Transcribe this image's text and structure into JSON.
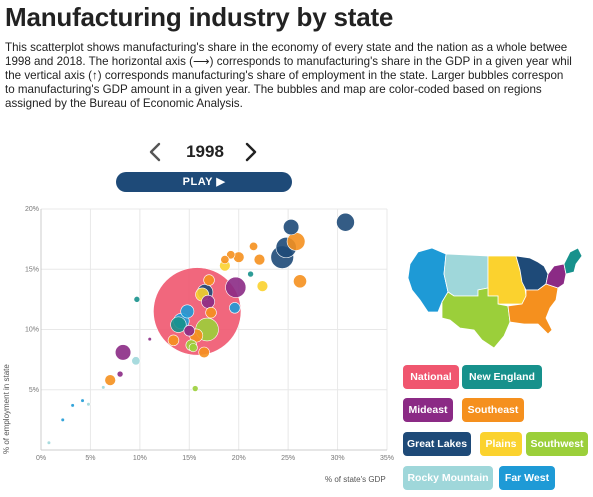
{
  "header": {
    "title": "Manufacturing industry by state",
    "description": [
      "This scatterplot shows manufacturing's share in the economy of every state and the nation as a whole betwee",
      "1998 and 2018. The horizontal axis (⟶) corresponds to manufacturing's share in the GDP in a given year whil",
      "the vertical axis (↑) corresponds manufacturing's share of employment in the state. Larger bubbles correspon",
      "to manufacturing's GDP amount in a given year. The bubbles and map are color-coded based on regions",
      "assigned by the Bureau of Economic Analysis."
    ]
  },
  "controls": {
    "year": "1998",
    "prev_icon": "chevron-left-icon",
    "next_icon": "chevron-right-icon",
    "play_label": "PLAY ▶"
  },
  "colors": {
    "National": "#f0566f",
    "New England": "#17918c",
    "Mideast": "#8b2a85",
    "Southeast": "#f5901e",
    "Great Lakes": "#1e4a78",
    "Plains": "#fbd22e",
    "Southwest": "#9bcf3a",
    "Rocky Mountain": "#9fd7da",
    "Far West": "#1e9ad6"
  },
  "legend": {
    "items": [
      "National",
      "New England",
      "Mideast",
      "Southeast",
      "Great Lakes",
      "Plains",
      "Southwest",
      "Rocky Mountain",
      "Far West"
    ]
  },
  "chart_data": {
    "type": "scatter",
    "title": "",
    "xlabel": "% of state's GDP",
    "ylabel": "% of employment in state",
    "xlim": [
      0,
      35
    ],
    "ylim": [
      0,
      20
    ],
    "xticks": [
      "0%",
      "5%",
      "10%",
      "15%",
      "20%",
      "25%",
      "30%",
      "35%"
    ],
    "yticks": [
      "5%",
      "10%",
      "15%",
      "20%"
    ],
    "grid": true,
    "points": [
      {
        "region": "National",
        "x": 15.8,
        "y": 11.5,
        "size": 36
      },
      {
        "region": "Great Lakes",
        "x": 30.8,
        "y": 18.9,
        "size": 7
      },
      {
        "region": "Great Lakes",
        "x": 25.3,
        "y": 18.5,
        "size": 6
      },
      {
        "region": "Great Lakes",
        "x": 24.8,
        "y": 16.8,
        "size": 8
      },
      {
        "region": "Great Lakes",
        "x": 24.4,
        "y": 16.0,
        "size": 9
      },
      {
        "region": "Southeast",
        "x": 25.8,
        "y": 17.3,
        "size": 7
      },
      {
        "region": "Southeast",
        "x": 26.2,
        "y": 14.0,
        "size": 5
      },
      {
        "region": "Southeast",
        "x": 22.1,
        "y": 15.8,
        "size": 4
      },
      {
        "region": "Southeast",
        "x": 19.2,
        "y": 16.2,
        "size": 3
      },
      {
        "region": "Southeast",
        "x": 18.6,
        "y": 15.8,
        "size": 3
      },
      {
        "region": "Southeast",
        "x": 21.5,
        "y": 16.9,
        "size": 3
      },
      {
        "region": "Southeast",
        "x": 20.0,
        "y": 16.0,
        "size": 4
      },
      {
        "region": "Plains",
        "x": 22.4,
        "y": 13.6,
        "size": 4
      },
      {
        "region": "Plains",
        "x": 18.6,
        "y": 15.3,
        "size": 4
      },
      {
        "region": "New England",
        "x": 21.2,
        "y": 14.6,
        "size": 2
      },
      {
        "region": "Mideast",
        "x": 19.7,
        "y": 13.5,
        "size": 8
      },
      {
        "region": "Far West",
        "x": 19.6,
        "y": 11.8,
        "size": 4
      },
      {
        "region": "Southeast",
        "x": 17.0,
        "y": 14.1,
        "size": 4
      },
      {
        "region": "Great Lakes",
        "x": 16.6,
        "y": 13.1,
        "size": 6
      },
      {
        "region": "Plains",
        "x": 16.3,
        "y": 12.9,
        "size": 5
      },
      {
        "region": "Mideast",
        "x": 16.9,
        "y": 12.3,
        "size": 5
      },
      {
        "region": "Southeast",
        "x": 17.2,
        "y": 11.4,
        "size": 4
      },
      {
        "region": "Far West",
        "x": 14.8,
        "y": 11.5,
        "size": 5
      },
      {
        "region": "Far West",
        "x": 14.2,
        "y": 10.7,
        "size": 6
      },
      {
        "region": "New England",
        "x": 13.9,
        "y": 10.4,
        "size": 6
      },
      {
        "region": "Southwest",
        "x": 16.8,
        "y": 10.0,
        "size": 9
      },
      {
        "region": "Southeast",
        "x": 15.7,
        "y": 9.5,
        "size": 5
      },
      {
        "region": "Mideast",
        "x": 15.0,
        "y": 9.9,
        "size": 4
      },
      {
        "region": "Southeast",
        "x": 13.4,
        "y": 9.1,
        "size": 4
      },
      {
        "region": "Southwest",
        "x": 15.2,
        "y": 8.7,
        "size": 4
      },
      {
        "region": "Southeast",
        "x": 16.5,
        "y": 8.1,
        "size": 4
      },
      {
        "region": "Southwest",
        "x": 15.4,
        "y": 8.5,
        "size": 3
      },
      {
        "region": "Mideast",
        "x": 8.3,
        "y": 8.1,
        "size": 6
      },
      {
        "region": "New England",
        "x": 9.7,
        "y": 12.5,
        "size": 2
      },
      {
        "region": "Mideast",
        "x": 11.0,
        "y": 9.2,
        "size": 1
      },
      {
        "region": "Rocky Mountain",
        "x": 9.6,
        "y": 7.4,
        "size": 3
      },
      {
        "region": "Mideast",
        "x": 8.0,
        "y": 6.3,
        "size": 2
      },
      {
        "region": "Southeast",
        "x": 7.0,
        "y": 5.8,
        "size": 4
      },
      {
        "region": "Southwest",
        "x": 15.6,
        "y": 5.1,
        "size": 2
      },
      {
        "region": "Rocky Mountain",
        "x": 6.3,
        "y": 5.2,
        "size": 1
      },
      {
        "region": "Far West",
        "x": 4.2,
        "y": 4.1,
        "size": 1
      },
      {
        "region": "Far West",
        "x": 3.2,
        "y": 3.7,
        "size": 1
      },
      {
        "region": "Rocky Mountain",
        "x": 4.8,
        "y": 3.8,
        "size": 1
      },
      {
        "region": "Far West",
        "x": 2.2,
        "y": 2.5,
        "size": 1
      },
      {
        "region": "Rocky Mountain",
        "x": 0.8,
        "y": 0.6,
        "size": 1
      }
    ]
  }
}
